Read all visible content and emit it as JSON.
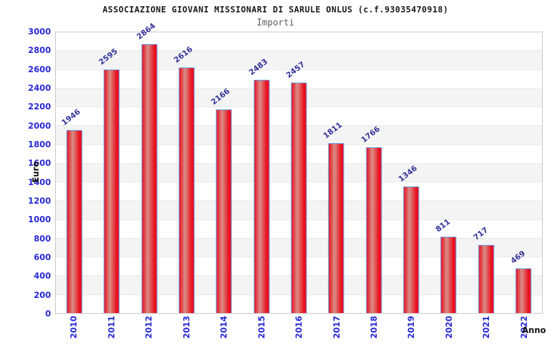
{
  "chart_data": {
    "type": "bar",
    "title": "ASSOCIAZIONE GIOVANI MISSIONARI DI SARULE ONLUS (c.f.93035470918)",
    "subtitle": "Importi",
    "xlabel": "Anno",
    "ylabel": "Euro",
    "categories": [
      "2010",
      "2011",
      "2012",
      "2013",
      "2014",
      "2015",
      "2016",
      "2017",
      "2018",
      "2019",
      "2020",
      "2021",
      "2022"
    ],
    "values": [
      1946,
      2595,
      2864,
      2616,
      2166,
      2483,
      2457,
      1811,
      1766,
      1346,
      811,
      717,
      469
    ],
    "ylim": [
      0,
      3000
    ],
    "ytick_step": 200,
    "yticks": [
      0,
      200,
      400,
      600,
      800,
      1000,
      1200,
      1400,
      1600,
      1800,
      2000,
      2200,
      2400,
      2600,
      2800,
      3000
    ],
    "grid": "alternating horizontal bands every 200, white/gray, legend off",
    "legend_position": "none",
    "bar_value_labels_rotated": true,
    "colors": {
      "title": "#1a1a1a",
      "subtitle": "#606060",
      "tick_label": "#2b2bd5",
      "value_label": "#333399",
      "axis_title": "#111111",
      "band_gray": "#f4f4f4",
      "grid_line": "#e9e9e9",
      "frame": "#c6c6c6",
      "bar_border": "#63a1f2",
      "bar_edge": "#e9101f",
      "bar_center": "#d98e86"
    }
  }
}
